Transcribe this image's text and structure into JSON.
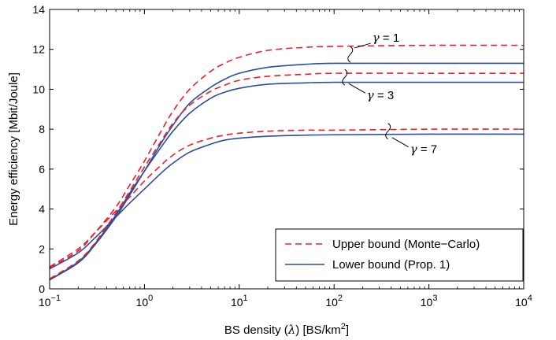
{
  "chart_data": {
    "type": "line",
    "title": "",
    "xlabel": "BS density (λ) [BS/km²]",
    "xlabel_parts": {
      "before": "BS density (",
      "lambda": "λ",
      "middle": ") [BS/km",
      "sup": "2",
      "after": "]"
    },
    "ylabel": "Energy efficiency [Mbit/Joule]",
    "x_scale": "log",
    "xlim": [
      0.1,
      10000
    ],
    "ylim": [
      0,
      14
    ],
    "x_ticks": [
      {
        "value": 0.1,
        "base": "10",
        "exp": "−1"
      },
      {
        "value": 1,
        "base": "10",
        "exp": "0"
      },
      {
        "value": 10,
        "base": "10",
        "exp": "1"
      },
      {
        "value": 100,
        "base": "10",
        "exp": "2"
      },
      {
        "value": 1000,
        "base": "10",
        "exp": "3"
      },
      {
        "value": 10000,
        "base": "10",
        "exp": "4"
      }
    ],
    "y_ticks": [
      0,
      2,
      4,
      6,
      8,
      10,
      12,
      14
    ],
    "grid": false,
    "legend_position": "bottom-right",
    "colors": {
      "upper": "#e8202a",
      "lower": "#2b4da0"
    },
    "series": [
      {
        "name": "Upper bound (Monte−Carlo)",
        "group": "γ = 1",
        "style": "dashed",
        "color": "#e8202a",
        "x": [
          0.1,
          0.2,
          0.3,
          0.5,
          0.7,
          1,
          1.5,
          2,
          3,
          5,
          7,
          10,
          20,
          50,
          100,
          1000,
          10000
        ],
        "y": [
          1.05,
          1.9,
          2.8,
          4.1,
          5.2,
          6.4,
          7.9,
          8.9,
          10.0,
          10.9,
          11.3,
          11.6,
          11.95,
          12.1,
          12.15,
          12.2,
          12.2
        ]
      },
      {
        "name": "Lower bound (Prop. 1)",
        "group": "γ = 1",
        "style": "solid",
        "color": "#2b4da0",
        "x": [
          0.1,
          0.2,
          0.3,
          0.5,
          0.7,
          1,
          1.5,
          2,
          3,
          5,
          7,
          10,
          20,
          50,
          100,
          1000,
          10000
        ],
        "y": [
          0.45,
          1.3,
          2.2,
          3.6,
          4.7,
          5.9,
          7.3,
          8.2,
          9.3,
          10.1,
          10.5,
          10.8,
          11.1,
          11.25,
          11.3,
          11.3,
          11.3
        ]
      },
      {
        "name": "Upper bound (Monte−Carlo)",
        "group": "γ = 3",
        "style": "dashed",
        "color": "#e8202a",
        "x": [
          0.1,
          0.2,
          0.3,
          0.5,
          0.7,
          1,
          1.5,
          2,
          3,
          5,
          7,
          10,
          20,
          50,
          100,
          1000,
          10000
        ],
        "y": [
          0.5,
          1.4,
          2.3,
          3.8,
          4.9,
          6.1,
          7.4,
          8.3,
          9.2,
          9.9,
          10.2,
          10.45,
          10.65,
          10.75,
          10.8,
          10.8,
          10.8
        ]
      },
      {
        "name": "Lower bound (Prop. 1)",
        "group": "γ = 3",
        "style": "solid",
        "color": "#2b4da0",
        "x": [
          0.1,
          0.2,
          0.3,
          0.5,
          0.7,
          1,
          1.5,
          2,
          3,
          5,
          7,
          10,
          20,
          50,
          100,
          1000,
          10000
        ],
        "y": [
          0.45,
          1.35,
          2.25,
          3.7,
          4.8,
          5.9,
          7.1,
          7.9,
          8.8,
          9.55,
          9.85,
          10.05,
          10.25,
          10.32,
          10.35,
          10.35,
          10.35
        ]
      },
      {
        "name": "Upper bound (Monte−Carlo)",
        "group": "γ = 7",
        "style": "dashed",
        "color": "#e8202a",
        "x": [
          0.1,
          0.2,
          0.3,
          0.5,
          0.7,
          1,
          1.5,
          2,
          3,
          5,
          7,
          10,
          20,
          50,
          100,
          1000,
          10000
        ],
        "y": [
          1.1,
          2.0,
          2.8,
          3.9,
          4.6,
          5.4,
          6.2,
          6.7,
          7.2,
          7.55,
          7.7,
          7.8,
          7.9,
          7.95,
          7.95,
          8.0,
          8.0
        ]
      },
      {
        "name": "Lower bound (Prop. 1)",
        "group": "γ = 7",
        "style": "solid",
        "color": "#2b4da0",
        "x": [
          0.1,
          0.2,
          0.3,
          0.5,
          0.7,
          1,
          1.5,
          2,
          3,
          5,
          7,
          10,
          20,
          50,
          100,
          1000,
          10000
        ],
        "y": [
          1.0,
          1.8,
          2.55,
          3.6,
          4.3,
          5.0,
          5.8,
          6.3,
          6.85,
          7.25,
          7.45,
          7.55,
          7.65,
          7.7,
          7.72,
          7.75,
          7.75
        ]
      }
    ],
    "legend": [
      {
        "label": "Upper bound (Monte−Carlo)",
        "style": "dashed",
        "color": "#e8202a"
      },
      {
        "label": "Lower bound (Prop. 1)",
        "style": "solid",
        "color": "#2b4da0"
      }
    ],
    "annotations": [
      {
        "greek": "γ",
        "text": " = 1",
        "x": 160,
        "y": 11.75,
        "side": "up"
      },
      {
        "greek": "γ",
        "text": " = 3",
        "x": 140,
        "y": 10.6,
        "side": "down"
      },
      {
        "greek": "γ",
        "text": " = 7",
        "x": 400,
        "y": 7.9,
        "side": "down"
      }
    ]
  }
}
